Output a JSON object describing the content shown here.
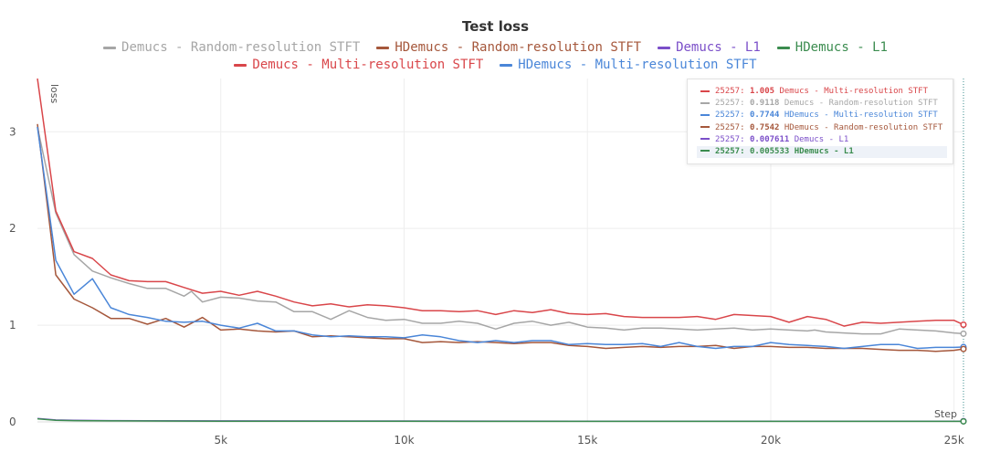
{
  "chart_data": {
    "type": "line",
    "title": "Test loss",
    "xlabel": "Step",
    "ylabel": "loss",
    "xlim": [
      0,
      25257
    ],
    "ylim": [
      0,
      3.55
    ],
    "x_ticks": [
      {
        "value": 5000,
        "label": "5k"
      },
      {
        "value": 10000,
        "label": "10k"
      },
      {
        "value": 15000,
        "label": "15k"
      },
      {
        "value": 20000,
        "label": "20k"
      },
      {
        "value": 25000,
        "label": "25k"
      }
    ],
    "y_ticks": [
      {
        "value": 0,
        "label": "0"
      },
      {
        "value": 1,
        "label": "1"
      },
      {
        "value": 2,
        "label": "2"
      },
      {
        "value": 3,
        "label": "3"
      }
    ],
    "grid": true,
    "legend_position": "top",
    "legend_rows": [
      [
        "random_stft_demucs",
        "random_stft_hdemucs",
        "l1_demucs",
        "l1_hdemucs"
      ],
      [
        "multi_stft_demucs",
        "multi_stft_hdemucs"
      ]
    ],
    "cursor_step": 25257,
    "series": [
      {
        "id": "multi_stft_demucs",
        "name": "Demucs - Multi-resolution STFT",
        "color": "#d9464a",
        "x": [
          0,
          500,
          1000,
          1500,
          2000,
          2500,
          3000,
          3500,
          4000,
          4500,
          5000,
          5500,
          6000,
          6500,
          7000,
          7500,
          8000,
          8500,
          9000,
          9500,
          10000,
          10500,
          11000,
          11500,
          12000,
          12500,
          13000,
          13500,
          14000,
          14500,
          15000,
          15500,
          16000,
          16500,
          17000,
          17500,
          18000,
          18500,
          19000,
          19500,
          20000,
          20500,
          21000,
          21500,
          22000,
          22500,
          23000,
          23500,
          24000,
          24500,
          25000,
          25257
        ],
        "y": [
          3.55,
          2.18,
          1.76,
          1.69,
          1.52,
          1.46,
          1.45,
          1.45,
          1.39,
          1.33,
          1.35,
          1.31,
          1.35,
          1.3,
          1.24,
          1.2,
          1.22,
          1.19,
          1.21,
          1.2,
          1.18,
          1.15,
          1.15,
          1.14,
          1.15,
          1.11,
          1.15,
          1.13,
          1.16,
          1.12,
          1.11,
          1.12,
          1.09,
          1.08,
          1.08,
          1.08,
          1.09,
          1.06,
          1.11,
          1.1,
          1.09,
          1.03,
          1.09,
          1.06,
          0.99,
          1.03,
          1.02,
          1.03,
          1.04,
          1.05,
          1.05,
          1.005
        ],
        "tooltip_value": "1.005"
      },
      {
        "id": "random_stft_demucs",
        "name": "Demucs - Random-resolution STFT",
        "color": "#a6a6a6",
        "x": [
          0,
          500,
          1000,
          1500,
          2000,
          2500,
          3000,
          3500,
          4000,
          4200,
          4500,
          5000,
          5500,
          6000,
          6500,
          7000,
          7500,
          8000,
          8500,
          9000,
          9500,
          10000,
          10500,
          11000,
          11500,
          12000,
          12500,
          13000,
          13500,
          14000,
          14500,
          15000,
          15500,
          16000,
          16500,
          17000,
          17500,
          18000,
          18500,
          19000,
          19500,
          20000,
          20500,
          21000,
          21200,
          21500,
          22000,
          22500,
          23000,
          23500,
          24000,
          24500,
          25000,
          25257
        ],
        "y": [
          3.05,
          2.16,
          1.73,
          1.56,
          1.49,
          1.43,
          1.38,
          1.38,
          1.3,
          1.35,
          1.24,
          1.29,
          1.28,
          1.25,
          1.24,
          1.14,
          1.14,
          1.06,
          1.15,
          1.08,
          1.05,
          1.06,
          1.02,
          1.02,
          1.04,
          1.02,
          0.96,
          1.02,
          1.04,
          1.0,
          1.03,
          0.98,
          0.97,
          0.95,
          0.97,
          0.97,
          0.96,
          0.95,
          0.96,
          0.97,
          0.95,
          0.96,
          0.95,
          0.94,
          0.95,
          0.93,
          0.92,
          0.91,
          0.91,
          0.96,
          0.95,
          0.94,
          0.92,
          0.9118
        ],
        "tooltip_value": "0.9118"
      },
      {
        "id": "multi_stft_hdemucs",
        "name": "HDemucs - Multi-resolution STFT",
        "color": "#4a86d8",
        "x": [
          0,
          500,
          1000,
          1500,
          2000,
          2500,
          3000,
          3500,
          4000,
          4500,
          5000,
          5500,
          6000,
          6500,
          7000,
          7500,
          8000,
          8500,
          9000,
          9500,
          10000,
          10500,
          11000,
          11500,
          12000,
          12500,
          13000,
          13500,
          14000,
          14500,
          15000,
          15500,
          16000,
          16500,
          17000,
          17500,
          18000,
          18500,
          19000,
          19500,
          20000,
          20500,
          21000,
          21500,
          22000,
          22500,
          23000,
          23500,
          24000,
          24500,
          25000,
          25257
        ],
        "y": [
          3.05,
          1.67,
          1.32,
          1.48,
          1.18,
          1.11,
          1.08,
          1.04,
          1.03,
          1.04,
          1.0,
          0.97,
          1.02,
          0.94,
          0.94,
          0.9,
          0.88,
          0.89,
          0.88,
          0.88,
          0.87,
          0.9,
          0.88,
          0.84,
          0.82,
          0.84,
          0.82,
          0.84,
          0.84,
          0.8,
          0.81,
          0.8,
          0.8,
          0.81,
          0.78,
          0.82,
          0.78,
          0.76,
          0.78,
          0.78,
          0.82,
          0.8,
          0.79,
          0.78,
          0.76,
          0.78,
          0.8,
          0.8,
          0.76,
          0.77,
          0.77,
          0.7744
        ],
        "tooltip_value": "0.7744"
      },
      {
        "id": "random_stft_hdemucs",
        "name": "HDemucs - Random-resolution STFT",
        "color": "#a5573b",
        "x": [
          0,
          500,
          1000,
          1500,
          2000,
          2500,
          3000,
          3500,
          4000,
          4500,
          5000,
          5500,
          6000,
          6500,
          7000,
          7500,
          8000,
          8500,
          9000,
          9500,
          10000,
          10500,
          11000,
          11500,
          12000,
          12500,
          13000,
          13500,
          14000,
          14500,
          15000,
          15500,
          16000,
          16500,
          17000,
          17500,
          18000,
          18500,
          19000,
          19500,
          20000,
          20500,
          21000,
          21500,
          22000,
          22500,
          23000,
          23500,
          24000,
          24500,
          25000,
          25257
        ],
        "y": [
          3.08,
          1.52,
          1.27,
          1.18,
          1.07,
          1.07,
          1.01,
          1.07,
          0.98,
          1.08,
          0.95,
          0.96,
          0.94,
          0.93,
          0.94,
          0.88,
          0.89,
          0.88,
          0.87,
          0.86,
          0.86,
          0.82,
          0.83,
          0.82,
          0.83,
          0.82,
          0.81,
          0.82,
          0.82,
          0.79,
          0.78,
          0.76,
          0.77,
          0.78,
          0.77,
          0.78,
          0.78,
          0.79,
          0.76,
          0.78,
          0.78,
          0.77,
          0.77,
          0.76,
          0.76,
          0.76,
          0.75,
          0.74,
          0.74,
          0.73,
          0.74,
          0.7542
        ],
        "tooltip_value": "0.7542"
      },
      {
        "id": "l1_demucs",
        "name": "Demucs - L1",
        "color": "#7b4fc9",
        "x": [
          0,
          500,
          1000,
          2000,
          3000,
          5000,
          10000,
          15000,
          20000,
          25257
        ],
        "y": [
          0.035,
          0.02,
          0.016,
          0.013,
          0.011,
          0.01,
          0.009,
          0.008,
          0.008,
          0.007611
        ],
        "tooltip_value": "0.007611"
      },
      {
        "id": "l1_hdemucs",
        "name": "HDemucs - L1",
        "color": "#3b8c4f",
        "x": [
          0,
          500,
          1000,
          2000,
          3000,
          5000,
          10000,
          15000,
          20000,
          25257
        ],
        "y": [
          0.032,
          0.017,
          0.013,
          0.01,
          0.009,
          0.008,
          0.007,
          0.006,
          0.006,
          0.005533
        ],
        "tooltip_value": "0.005533"
      }
    ],
    "tooltip_order": [
      "multi_stft_demucs",
      "random_stft_demucs",
      "multi_stft_hdemucs",
      "random_stft_hdemucs",
      "l1_demucs",
      "l1_hdemucs"
    ],
    "tooltip_highlight": "l1_hdemucs"
  }
}
